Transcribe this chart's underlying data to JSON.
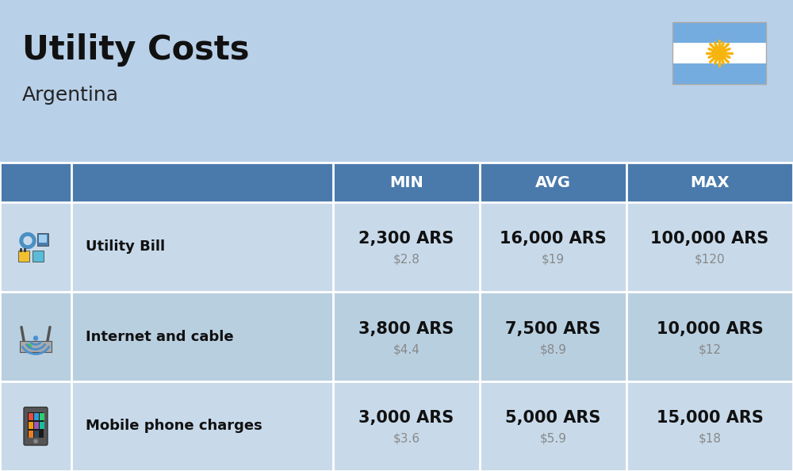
{
  "title": "Utility Costs",
  "subtitle": "Argentina",
  "background_color": "#b8d0e8",
  "header_bg_color": "#4a7aab",
  "header_text_color": "#ffffff",
  "row_colors": [
    "#c8daea",
    "#b8cfe0",
    "#c8daea"
  ],
  "cell_border_color": "#ffffff",
  "columns": [
    "MIN",
    "AVG",
    "MAX"
  ],
  "rows": [
    {
      "label": "Utility Bill",
      "min_ars": "2,300 ARS",
      "min_usd": "$2.8",
      "avg_ars": "16,000 ARS",
      "avg_usd": "$19",
      "max_ars": "100,000 ARS",
      "max_usd": "$120"
    },
    {
      "label": "Internet and cable",
      "min_ars": "3,800 ARS",
      "min_usd": "$4.4",
      "avg_ars": "7,500 ARS",
      "avg_usd": "$8.9",
      "max_ars": "10,000 ARS",
      "max_usd": "$12"
    },
    {
      "label": "Mobile phone charges",
      "min_ars": "3,000 ARS",
      "min_usd": "$3.6",
      "avg_ars": "5,000 ARS",
      "avg_usd": "$5.9",
      "max_ars": "15,000 ARS",
      "max_usd": "$18"
    }
  ],
  "title_fontsize": 30,
  "subtitle_fontsize": 18,
  "header_fontsize": 14,
  "label_fontsize": 13,
  "ars_fontsize": 15,
  "usd_fontsize": 11,
  "fig_width": 10.0,
  "fig_height": 5.94,
  "dpi": 100
}
